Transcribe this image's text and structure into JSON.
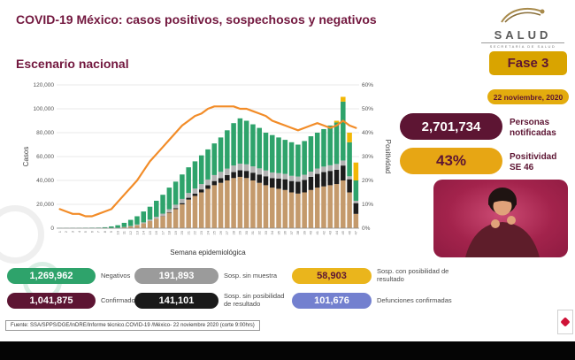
{
  "header": {
    "title": "COVID-19 México: casos positivos, sospechosos y negativos",
    "logo_text": "SALUD",
    "logo_subtext": "SECRETARÍA DE SALUD"
  },
  "section_title": "Escenario nacional",
  "badges": {
    "phase": "Fase 3",
    "date": "22 noviembre, 2020"
  },
  "kpis": {
    "notified_value": "2,701,734",
    "notified_label_1": "Personas",
    "notified_label_2": "notificadas",
    "positivity_value": "43%",
    "positivity_label_1": "Positividad",
    "positivity_label_2": "SE 46"
  },
  "summary": [
    {
      "value": "1,269,962",
      "label": "Negativos",
      "color": "#2ea36b"
    },
    {
      "value": "191,893",
      "label": "Sosp. sin muestra",
      "color": "#9b9b9b"
    },
    {
      "value": "58,903",
      "label": "Sosp. con posibilidad de resultado",
      "color": "#eab51c"
    },
    {
      "value": "1,041,875",
      "label": "Confirmados",
      "color": "#5d1533"
    },
    {
      "value": "141,101",
      "label": "Sosp. sin posibilidad de resultado",
      "color": "#1a1a1a"
    },
    {
      "value": "101,676",
      "label": "Defunciones confirmadas",
      "color": "#7380cf"
    }
  ],
  "footer": "Fuente: SSA/SPPS/DGE/InDRE/Informe técnico.COVID-19 /México- 22 noviembre 2020 (corte 9:00hrs)",
  "colors": {
    "maroon": "#5d1533",
    "gold": "#d9a400",
    "green": "#2ea36b",
    "gray": "#9b9b9b",
    "yellow": "#eab51c",
    "black": "#1a1a1a",
    "blue": "#7380cf",
    "orange": "#f28c28"
  },
  "chart_data": {
    "type": "bar",
    "stacked": true,
    "title": "Escenario nacional",
    "xlabel": "Semana epidemiológica",
    "ylabel_left": "Casos",
    "ylabel_right": "Positividad",
    "ylim_left": [
      0,
      120000
    ],
    "ytick_step_left": 20000,
    "ylim_right": [
      0,
      60
    ],
    "ytick_step_right": 10,
    "grid": true,
    "categories": [
      "1",
      "2",
      "3",
      "4",
      "5",
      "6",
      "7",
      "8",
      "9",
      "10",
      "11",
      "12",
      "13",
      "14",
      "15",
      "16",
      "17",
      "18",
      "19",
      "20",
      "21",
      "22",
      "23",
      "24",
      "25",
      "26",
      "27",
      "28",
      "29",
      "30",
      "31",
      "32",
      "33",
      "34",
      "35",
      "36",
      "37",
      "38",
      "39",
      "40",
      "41",
      "42",
      "43",
      "44",
      "45",
      "46",
      "47"
    ],
    "series": [
      {
        "name": "Confirmados",
        "color": "#c49a6c",
        "values": [
          0,
          0,
          0,
          0,
          0,
          0,
          0,
          50,
          100,
          300,
          800,
          1500,
          2500,
          4000,
          6000,
          8000,
          10000,
          13000,
          16000,
          20000,
          24000,
          27000,
          30000,
          33000,
          36000,
          38000,
          40000,
          42000,
          43000,
          42000,
          40000,
          38000,
          36000,
          34000,
          33000,
          32000,
          30000,
          29000,
          30000,
          32000,
          34000,
          35000,
          36000,
          37000,
          40000,
          30000,
          12000
        ]
      },
      {
        "name": "Sosp. sin posibilidad de resultado",
        "color": "#1c1c1c",
        "values": [
          0,
          0,
          0,
          0,
          0,
          0,
          0,
          0,
          0,
          0,
          0,
          0,
          0,
          0,
          0,
          0,
          200,
          400,
          700,
          1000,
          1500,
          2000,
          2500,
          3000,
          3500,
          4000,
          4500,
          5000,
          5500,
          6000,
          6500,
          7000,
          7500,
          8000,
          8500,
          9000,
          9500,
          10000,
          10500,
          11000,
          11500,
          12000,
          12000,
          12000,
          12500,
          11000,
          9000
        ]
      },
      {
        "name": "Sosp. sin muestra",
        "color": "#b3b3b3",
        "values": [
          0,
          0,
          0,
          0,
          0,
          0,
          0,
          0,
          50,
          100,
          200,
          400,
          600,
          900,
          1200,
          1600,
          2000,
          2500,
          3000,
          3500,
          4000,
          4200,
          4500,
          4800,
          5000,
          5200,
          5400,
          5500,
          5600,
          5500,
          5300,
          5100,
          4900,
          4700,
          4600,
          4500,
          4400,
          4300,
          4300,
          4400,
          4500,
          4600,
          4700,
          4800,
          4200,
          2500,
          2000
        ]
      },
      {
        "name": "Negativos",
        "color": "#2ea36b",
        "values": [
          200,
          250,
          300,
          350,
          400,
          450,
          500,
          750,
          1350,
          2100,
          3500,
          5100,
          6900,
          9100,
          10800,
          13400,
          15800,
          18100,
          19300,
          20500,
          21500,
          22800,
          24000,
          25200,
          26500,
          28800,
          32100,
          35500,
          37900,
          36500,
          35200,
          33900,
          31600,
          31300,
          29900,
          28500,
          28100,
          26700,
          28200,
          29600,
          30000,
          31400,
          33300,
          34700,
          49300,
          28500,
          17000
        ]
      },
      {
        "name": "Sosp. con posibilidad de resultado",
        "color": "#f2b705",
        "values": [
          0,
          0,
          0,
          0,
          0,
          0,
          0,
          0,
          0,
          0,
          0,
          0,
          0,
          0,
          0,
          0,
          0,
          0,
          0,
          0,
          0,
          0,
          0,
          0,
          0,
          0,
          0,
          0,
          0,
          0,
          0,
          0,
          0,
          0,
          0,
          0,
          0,
          0,
          0,
          0,
          0,
          0,
          0,
          1500,
          4000,
          8000,
          15000
        ]
      }
    ],
    "line": {
      "name": "Positividad",
      "color": "#f28c28",
      "unit": "%",
      "values": [
        8,
        7,
        6,
        6,
        5,
        5,
        6,
        7,
        8,
        11,
        14,
        17,
        20,
        24,
        28,
        31,
        34,
        37,
        40,
        43,
        45,
        47,
        48,
        50,
        51,
        51,
        51,
        51,
        50,
        50,
        49,
        48,
        47,
        45,
        44,
        43,
        42,
        41,
        42,
        43,
        44,
        43,
        42,
        43,
        45,
        43,
        42
      ]
    }
  }
}
